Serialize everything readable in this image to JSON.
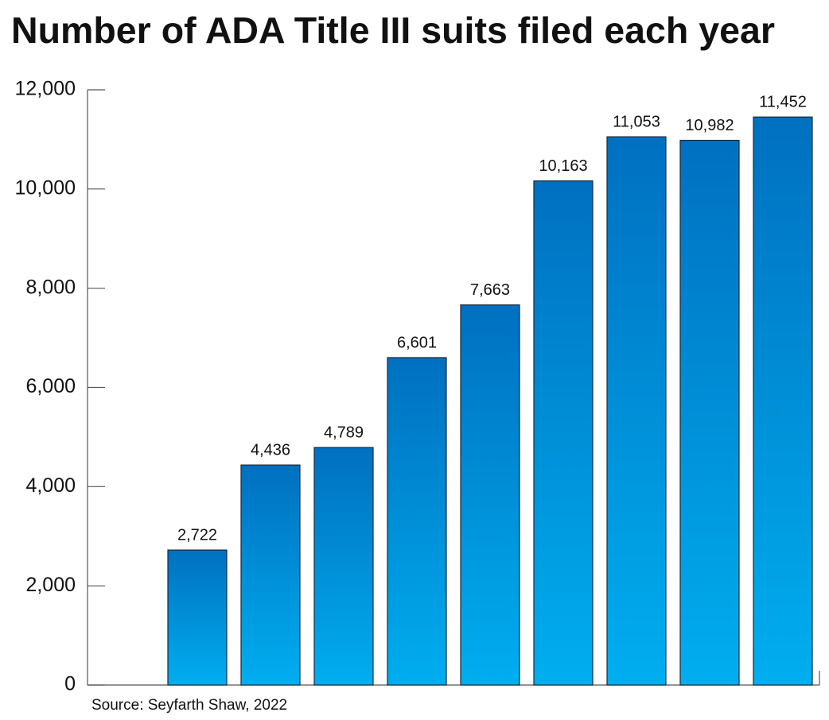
{
  "chart_data": {
    "type": "bar",
    "title": "Number of ADA Title III suits filed each year",
    "source": "Source: Seyfarth Shaw, 2022",
    "categories": [
      null,
      null,
      null,
      null,
      null,
      null,
      null,
      null,
      null,
      null
    ],
    "values": [
      null,
      2722,
      4436,
      4789,
      6601,
      7663,
      10163,
      11053,
      10982,
      11452
    ],
    "value_labels": [
      null,
      "2,722",
      "4,436",
      "4,789",
      "6,601",
      "7,663",
      "10,163",
      "11,053",
      "10,982",
      "11,452"
    ],
    "color": [
      "#0070c0",
      "#00aeef"
    ],
    "ylim": [
      0,
      12000
    ],
    "yticks": [
      0,
      {
        "value": 2000,
        "label": "2,000"
      },
      {
        "value": 4000,
        "label": "4,000"
      },
      {
        "value": 6000,
        "label": "6,000"
      },
      {
        "value": 8000,
        "label": "8,000"
      },
      {
        "value": 10000,
        "label": "10,000"
      },
      {
        "value": 12000,
        "label": "12,000"
      }
    ],
    "grid": false
  }
}
